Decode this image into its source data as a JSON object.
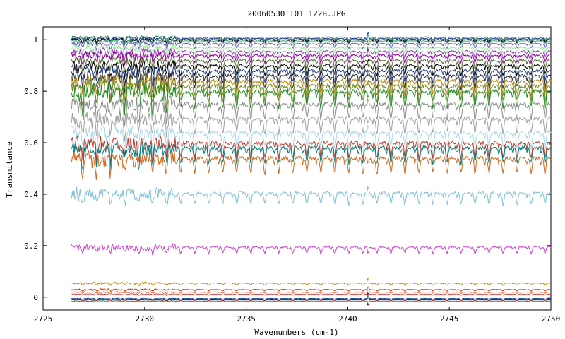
{
  "chart_data": {
    "type": "line",
    "title": "20060530_I01_122B.JPG",
    "xlabel": "Wavenumbers (cm-1)",
    "ylabel": "Transmitance",
    "xlim": [
      2725,
      2750
    ],
    "ylim": [
      -0.05,
      1.05
    ],
    "xticks": [
      "2725",
      "2730",
      "2735",
      "2740",
      "2745",
      "2750"
    ],
    "yticks": [
      "0",
      "0.2",
      "0.4",
      "0.6",
      "0.8",
      "1"
    ],
    "x_start": 2726.4,
    "x_end": 2750,
    "grid": false,
    "legend": "none",
    "line_spacing_cm1": 0.69,
    "series": [
      {
        "base": 1.01,
        "depth": 0.01,
        "color": "#2e8b57"
      },
      {
        "base": 1.005,
        "depth": 0.012,
        "color": "#1f3f8f"
      },
      {
        "base": 1.0,
        "depth": 0.012,
        "color": "#000000"
      },
      {
        "base": 0.995,
        "depth": 0.014,
        "color": "#3cb371"
      },
      {
        "base": 0.985,
        "depth": 0.018,
        "color": "#6a5acd"
      },
      {
        "base": 0.97,
        "depth": 0.022,
        "color": "#90ee90"
      },
      {
        "base": 0.955,
        "depth": 0.026,
        "color": "#9932cc"
      },
      {
        "base": 0.94,
        "depth": 0.03,
        "color": "#8b008b"
      },
      {
        "base": 0.92,
        "depth": 0.035,
        "color": "#556b2f"
      },
      {
        "base": 0.9,
        "depth": 0.04,
        "color": "#000000"
      },
      {
        "base": 0.88,
        "depth": 0.045,
        "color": "#1e3a8a"
      },
      {
        "base": 0.86,
        "depth": 0.05,
        "color": "#333333"
      },
      {
        "base": 0.84,
        "depth": 0.055,
        "color": "#b8860b"
      },
      {
        "base": 0.82,
        "depth": 0.06,
        "color": "#6b8e23"
      },
      {
        "base": 0.8,
        "depth": 0.065,
        "color": "#228b22"
      },
      {
        "base": 0.75,
        "depth": 0.06,
        "color": "#8c8c8c"
      },
      {
        "base": 0.695,
        "depth": 0.06,
        "color": "#a0a0a0"
      },
      {
        "base": 0.64,
        "depth": 0.06,
        "color": "#a8d8e8"
      },
      {
        "base": 0.6,
        "depth": 0.06,
        "color": "#c0392b"
      },
      {
        "base": 0.58,
        "depth": 0.06,
        "color": "#008080"
      },
      {
        "base": 0.54,
        "depth": 0.06,
        "color": "#d2691e"
      },
      {
        "base": 0.405,
        "depth": 0.045,
        "color": "#7ec0d8"
      },
      {
        "base": 0.195,
        "depth": 0.025,
        "color": "#cc44cc"
      },
      {
        "base": 0.055,
        "depth": 0.008,
        "color": "#cc8800"
      },
      {
        "base": 0.03,
        "depth": 0.006,
        "color": "#cc3300"
      },
      {
        "base": 0.02,
        "depth": 0.005,
        "color": "#e07040"
      },
      {
        "base": 0.012,
        "depth": 0.004,
        "color": "#dd4444"
      },
      {
        "base": -0.005,
        "depth": 0.003,
        "color": "#1f3f8f"
      },
      {
        "base": -0.01,
        "depth": 0.003,
        "color": "#8b0000"
      },
      {
        "base": -0.015,
        "depth": 0.003,
        "color": "#2e8b57"
      }
    ]
  }
}
